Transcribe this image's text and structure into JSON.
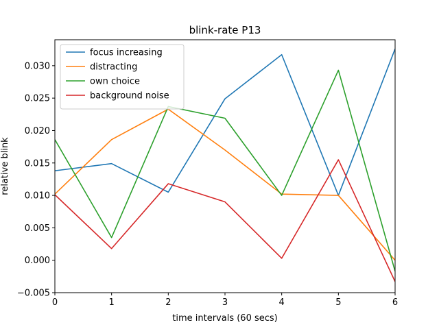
{
  "chart_data": {
    "type": "line",
    "title": "blink-rate P13",
    "xlabel": "time intervals (60 secs)",
    "ylabel": "relative blink",
    "x": [
      0,
      1,
      2,
      3,
      4,
      5,
      6
    ],
    "xlim": [
      0,
      6
    ],
    "ylim": [
      -0.005,
      0.034
    ],
    "xticks": [
      0,
      1,
      2,
      3,
      4,
      5,
      6
    ],
    "yticks": [
      -0.005,
      0.0,
      0.005,
      0.01,
      0.015,
      0.02,
      0.025,
      0.03
    ],
    "ytick_labels": [
      "−0.005",
      "0.000",
      "0.005",
      "0.010",
      "0.015",
      "0.020",
      "0.025",
      "0.030"
    ],
    "grid": false,
    "legend_position": "top-left",
    "series": [
      {
        "name": "focus increasing",
        "color": "#1f77b4",
        "values": [
          0.0138,
          0.0149,
          0.0105,
          0.0249,
          0.0317,
          0.01,
          0.0326
        ]
      },
      {
        "name": "distracting",
        "color": "#ff7f0e",
        "values": [
          0.0102,
          0.0186,
          0.0233,
          0.017,
          0.0102,
          0.01,
          0.0
        ]
      },
      {
        "name": "own choice",
        "color": "#2ca02c",
        "values": [
          0.0186,
          0.0035,
          0.0237,
          0.0219,
          0.01,
          0.0293,
          -0.0017
        ]
      },
      {
        "name": "background noise",
        "color": "#d62728",
        "values": [
          0.0101,
          0.0018,
          0.0118,
          0.009,
          0.0003,
          0.0155,
          -0.0033
        ]
      }
    ]
  }
}
